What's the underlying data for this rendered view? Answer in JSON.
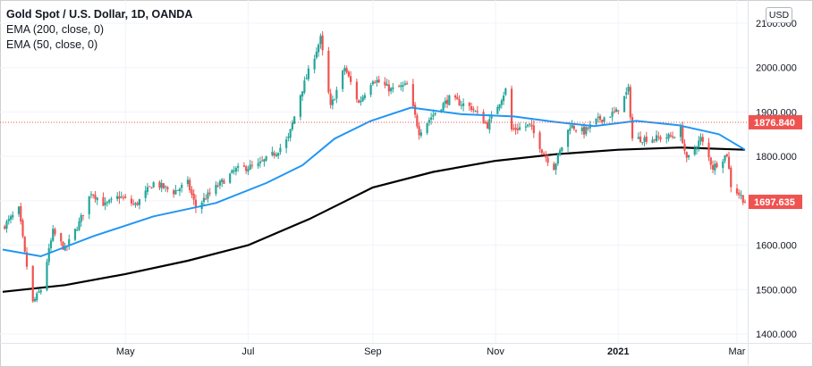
{
  "legend": {
    "title": "Gold Spot / U.S. Dollar, 1D, OANDA",
    "ema200": "EMA (200, close, 0)",
    "ema50": "EMA (50, close, 0)"
  },
  "currency_button": "USD",
  "price_tags": {
    "last_price": "1697.635",
    "reference_price": "1876.840"
  },
  "colors": {
    "up_candle": "#26a69a",
    "down_candle": "#ef5350",
    "ema50": "#2196f3",
    "ema200": "#000000",
    "last_price_tag": "#ef5350",
    "reference_line": "#ef5350",
    "grid": "#f0f3fa"
  },
  "chart_data": {
    "type": "candlestick",
    "symbol": "Gold Spot / U.S. Dollar, 1D, OANDA",
    "ylim": [
      1380,
      2120
    ],
    "y_ticks": [
      "2100.000",
      "2000.000",
      "1900.000",
      "1800.000",
      "1700.000",
      "1600.000",
      "1500.000",
      "1400.000"
    ],
    "y_tick_values": [
      2100,
      2000,
      1900,
      1800,
      1700,
      1600,
      1500,
      1400
    ],
    "x_ticks": [
      "May",
      "Jul",
      "Sep",
      "Nov",
      "2021",
      "Mar"
    ],
    "x_tick_dates": [
      "2020-05-01",
      "2020-07-01",
      "2020-09-01",
      "2020-11-01",
      "2021-01-01",
      "2021-03-01"
    ],
    "x_range": [
      "2020-03-01",
      "2021-03-05"
    ],
    "grid": true,
    "price_path": [
      [
        "2020-03-01",
        1640
      ],
      [
        "2020-03-09",
        1680
      ],
      [
        "2020-03-12",
        1580
      ],
      [
        "2020-03-16",
        1470
      ],
      [
        "2020-03-20",
        1500
      ],
      [
        "2020-03-26",
        1630
      ],
      [
        "2020-04-01",
        1590
      ],
      [
        "2020-04-08",
        1650
      ],
      [
        "2020-04-14",
        1720
      ],
      [
        "2020-04-21",
        1690
      ],
      [
        "2020-04-28",
        1710
      ],
      [
        "2020-05-06",
        1690
      ],
      [
        "2020-05-15",
        1740
      ],
      [
        "2020-05-25",
        1720
      ],
      [
        "2020-06-01",
        1740
      ],
      [
        "2020-06-05",
        1685
      ],
      [
        "2020-06-15",
        1730
      ],
      [
        "2020-06-25",
        1770
      ],
      [
        "2020-07-06",
        1780
      ],
      [
        "2020-07-15",
        1810
      ],
      [
        "2020-07-21",
        1840
      ],
      [
        "2020-07-27",
        1940
      ],
      [
        "2020-08-06",
        2065
      ],
      [
        "2020-08-11",
        1910
      ],
      [
        "2020-08-18",
        2000
      ],
      [
        "2020-08-25",
        1920
      ],
      [
        "2020-09-01",
        1975
      ],
      [
        "2020-09-10",
        1950
      ],
      [
        "2020-09-18",
        1960
      ],
      [
        "2020-09-24",
        1855
      ],
      [
        "2020-10-02",
        1900
      ],
      [
        "2020-10-09",
        1930
      ],
      [
        "2020-10-20",
        1910
      ],
      [
        "2020-10-28",
        1870
      ],
      [
        "2020-11-06",
        1950
      ],
      [
        "2020-11-09",
        1860
      ],
      [
        "2020-11-18",
        1870
      ],
      [
        "2020-11-25",
        1805
      ],
      [
        "2020-11-30",
        1775
      ],
      [
        "2020-12-08",
        1870
      ],
      [
        "2020-12-15",
        1855
      ],
      [
        "2020-12-21",
        1880
      ],
      [
        "2020-12-31",
        1900
      ],
      [
        "2021-01-06",
        1950
      ],
      [
        "2021-01-08",
        1840
      ],
      [
        "2021-01-18",
        1840
      ],
      [
        "2021-01-28",
        1845
      ],
      [
        "2021-02-01",
        1860
      ],
      [
        "2021-02-04",
        1790
      ],
      [
        "2021-02-11",
        1840
      ],
      [
        "2021-02-17",
        1775
      ],
      [
        "2021-02-24",
        1805
      ],
      [
        "2021-02-26",
        1735
      ],
      [
        "2021-03-03",
        1710
      ],
      [
        "2021-03-05",
        1697.635
      ]
    ],
    "ema50": [
      [
        "2020-03-01",
        1590
      ],
      [
        "2020-03-20",
        1575
      ],
      [
        "2020-04-15",
        1620
      ],
      [
        "2020-05-15",
        1665
      ],
      [
        "2020-06-15",
        1695
      ],
      [
        "2020-07-10",
        1740
      ],
      [
        "2020-07-28",
        1780
      ],
      [
        "2020-08-13",
        1840
      ],
      [
        "2020-08-31",
        1880
      ],
      [
        "2020-09-20",
        1910
      ],
      [
        "2020-10-15",
        1895
      ],
      [
        "2020-11-10",
        1890
      ],
      [
        "2020-11-30",
        1878
      ],
      [
        "2020-12-20",
        1868
      ],
      [
        "2021-01-10",
        1880
      ],
      [
        "2021-01-31",
        1870
      ],
      [
        "2021-02-20",
        1850
      ],
      [
        "2021-03-05",
        1815
      ]
    ],
    "ema200": [
      [
        "2020-03-01",
        1495
      ],
      [
        "2020-04-01",
        1510
      ],
      [
        "2020-05-01",
        1535
      ],
      [
        "2020-06-01",
        1565
      ],
      [
        "2020-07-01",
        1600
      ],
      [
        "2020-08-01",
        1660
      ],
      [
        "2020-09-01",
        1730
      ],
      [
        "2020-10-01",
        1765
      ],
      [
        "2020-11-01",
        1790
      ],
      [
        "2020-12-01",
        1805
      ],
      [
        "2021-01-01",
        1815
      ],
      [
        "2021-02-01",
        1820
      ],
      [
        "2021-03-05",
        1815
      ]
    ],
    "last_price": 1697.635,
    "reference_price": 1876.84
  }
}
